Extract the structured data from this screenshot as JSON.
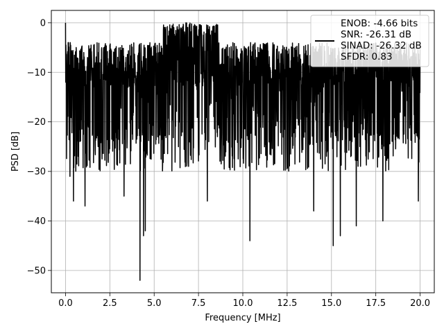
{
  "chart_data": {
    "type": "line",
    "xlabel": "Frequency [MHz]",
    "ylabel": "PSD [dB]",
    "xlim": [
      -0.8,
      20.8
    ],
    "ylim": [
      -54.5,
      2.5
    ],
    "xticks": [
      0,
      2.5,
      5,
      7.5,
      10,
      12.5,
      15,
      17.5,
      20
    ],
    "xtick_labels": [
      "0.0",
      "2.5",
      "5.0",
      "7.5",
      "10.0",
      "12.5",
      "15.0",
      "17.5",
      "20.0"
    ],
    "yticks": [
      0,
      -10,
      -20,
      -30,
      -40,
      -50
    ],
    "ytick_labels": [
      "0",
      "−10",
      "−20",
      "−30",
      "−40",
      "−50"
    ],
    "grid": true,
    "legend_position": "top-right",
    "legend_lines": [
      "ENOB: -4.66 bits",
      "SNR: -26.31 dB",
      "SINAD: -26.32 dB",
      "SFDR: 0.83"
    ],
    "series": [
      {
        "color": "#000000",
        "x_start": 0,
        "x_end": 20,
        "peak": {
          "x": 0,
          "y": 0
        },
        "typical_range": [
          -27,
          -4
        ],
        "notable_dips": [
          {
            "x": 0.25,
            "y": -31
          },
          {
            "x": 0.45,
            "y": -36
          },
          {
            "x": 1.1,
            "y": -37
          },
          {
            "x": 3.3,
            "y": -35
          },
          {
            "x": 4.2,
            "y": -52
          },
          {
            "x": 4.4,
            "y": -43
          },
          {
            "x": 4.5,
            "y": -42
          },
          {
            "x": 8.0,
            "y": -36
          },
          {
            "x": 10.4,
            "y": -44
          },
          {
            "x": 14.0,
            "y": -38
          },
          {
            "x": 15.1,
            "y": -45
          },
          {
            "x": 15.5,
            "y": -43
          },
          {
            "x": 16.4,
            "y": -41
          },
          {
            "x": 17.9,
            "y": -40
          },
          {
            "x": 19.9,
            "y": -36
          }
        ]
      }
    ]
  }
}
